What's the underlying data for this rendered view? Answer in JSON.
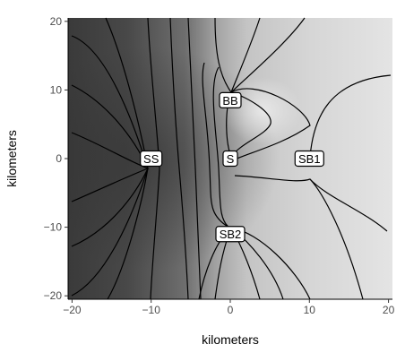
{
  "chart_data": {
    "type": "heatmap",
    "subtype": "contour",
    "title": "",
    "xlabel": "kilometers",
    "ylabel": "kilometers",
    "xlim": [
      -20.5,
      20.5
    ],
    "ylim": [
      -20.5,
      20.5
    ],
    "xticks": [
      -20,
      -10,
      0,
      10,
      20
    ],
    "yticks": [
      -20,
      -10,
      0,
      10,
      20
    ],
    "grid": false,
    "legend": "none",
    "fill_colors": {
      "low": "#3a3a3a",
      "high": "#e4e4e4"
    },
    "contour_color": "#000000",
    "stations": [
      {
        "label": "SS",
        "x": -10,
        "y": 0
      },
      {
        "label": "S",
        "x": 0,
        "y": 0
      },
      {
        "label": "SB1",
        "x": 10,
        "y": 0
      },
      {
        "label": "BB",
        "x": 0,
        "y": 8.5
      },
      {
        "label": "SB2",
        "x": 0,
        "y": -11
      }
    ]
  }
}
